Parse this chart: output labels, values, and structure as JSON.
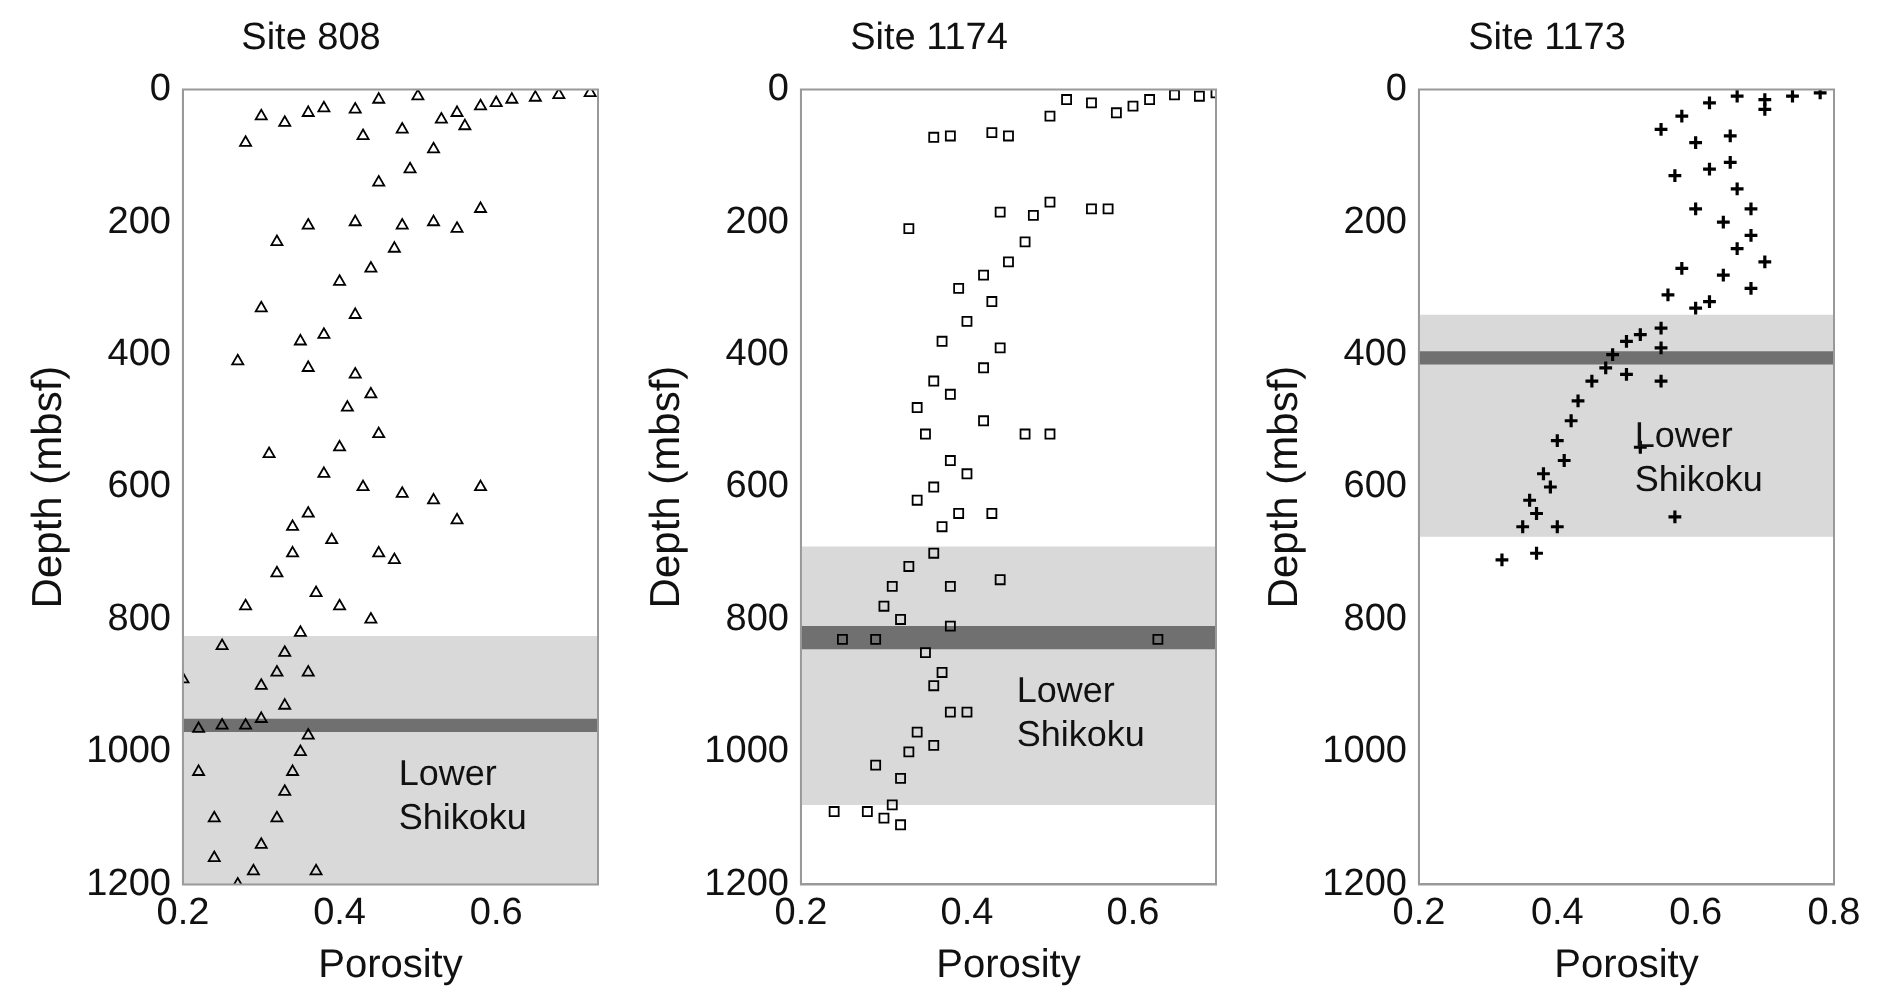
{
  "chart_data": [
    {
      "type": "scatter",
      "title": "Site 808",
      "xlabel": "Porosity",
      "ylabel": "Depth (mbsf)",
      "marker": "triangle",
      "xlim": [
        0.2,
        0.73
      ],
      "xticks": [
        0.2,
        0.4,
        0.6
      ],
      "ylim": [
        1200,
        0
      ],
      "yticks": [
        0,
        200,
        400,
        600,
        800,
        1000,
        1200
      ],
      "bands": [
        {
          "axis": "y",
          "from": 825,
          "to": 1200,
          "label": "Lower Shikoku",
          "color": "#d9d9d9"
        },
        {
          "axis": "y",
          "from": 950,
          "to": 970,
          "color": "#707070"
        }
      ],
      "series": [
        {
          "color": "#000000",
          "x": [
            0.72,
            0.68,
            0.65,
            0.62,
            0.6,
            0.58,
            0.55,
            0.53,
            0.5,
            0.45,
            0.42,
            0.38,
            0.36,
            0.33,
            0.3,
            0.28,
            0.43,
            0.48,
            0.56,
            0.52,
            0.49,
            0.45,
            0.58,
            0.52,
            0.48,
            0.55,
            0.42,
            0.36,
            0.32,
            0.47,
            0.44,
            0.4,
            0.3,
            0.42,
            0.38,
            0.35,
            0.27,
            0.36,
            0.42,
            0.44,
            0.41,
            0.45,
            0.4,
            0.31,
            0.38,
            0.43,
            0.48,
            0.52,
            0.36,
            0.34,
            0.39,
            0.45,
            0.47,
            0.34,
            0.32,
            0.37,
            0.4,
            0.44,
            0.35,
            0.33,
            0.32,
            0.3,
            0.36,
            0.2,
            0.33,
            0.3,
            0.25,
            0.22,
            0.28,
            0.36,
            0.35,
            0.34,
            0.33,
            0.32,
            0.3,
            0.29,
            0.27,
            0.24,
            0.22,
            0.24,
            0.37,
            0.58,
            0.55,
            0.28,
            0.25
          ],
          "values": [
            5,
            8,
            12,
            15,
            20,
            25,
            35,
            45,
            10,
            15,
            30,
            28,
            35,
            50,
            40,
            80,
            70,
            60,
            55,
            90,
            120,
            140,
            180,
            200,
            205,
            210,
            200,
            205,
            230,
            240,
            270,
            290,
            330,
            340,
            370,
            380,
            410,
            420,
            430,
            460,
            480,
            520,
            540,
            550,
            580,
            600,
            610,
            620,
            640,
            660,
            680,
            700,
            710,
            700,
            730,
            760,
            780,
            800,
            820,
            850,
            880,
            900,
            880,
            890,
            930,
            950,
            960,
            965,
            960,
            975,
            1000,
            1030,
            1060,
            1100,
            1140,
            1180,
            1200,
            1160,
            1030,
            1100,
            1180,
            600,
            650,
            780,
            840
          ]
        }
      ]
    },
    {
      "type": "scatter",
      "title": "Site 1174",
      "xlabel": "Porosity",
      "ylabel": "Depth (mbsf)",
      "marker": "square",
      "xlim": [
        0.2,
        0.7
      ],
      "xticks": [
        0.2,
        0.4,
        0.6
      ],
      "ylim": [
        1200,
        0
      ],
      "yticks": [
        0,
        200,
        400,
        600,
        800,
        1000,
        1200
      ],
      "bands": [
        {
          "axis": "y",
          "from": 690,
          "to": 1080,
          "label": "Lower Shikoku",
          "color": "#d9d9d9"
        },
        {
          "axis": "y",
          "from": 810,
          "to": 845,
          "color": "#707070"
        }
      ],
      "series": [
        {
          "color": "#000000",
          "x": [
            0.7,
            0.68,
            0.65,
            0.62,
            0.6,
            0.58,
            0.55,
            0.52,
            0.5,
            0.45,
            0.38,
            0.36,
            0.43,
            0.57,
            0.55,
            0.5,
            0.48,
            0.44,
            0.33,
            0.47,
            0.45,
            0.42,
            0.39,
            0.43,
            0.4,
            0.37,
            0.44,
            0.42,
            0.36,
            0.38,
            0.34,
            0.35,
            0.42,
            0.47,
            0.5,
            0.38,
            0.36,
            0.4,
            0.34,
            0.39,
            0.43,
            0.37,
            0.36,
            0.33,
            0.31,
            0.38,
            0.44,
            0.3,
            0.32,
            0.29,
            0.25,
            0.38,
            0.63,
            0.35,
            0.37,
            0.36,
            0.38,
            0.34,
            0.33,
            0.4,
            0.29,
            0.32,
            0.31,
            0.3,
            0.32,
            0.24,
            0.28,
            0.36
          ],
          "values": [
            5,
            10,
            8,
            15,
            25,
            35,
            20,
            15,
            40,
            70,
            70,
            72,
            65,
            180,
            180,
            170,
            190,
            185,
            210,
            230,
            260,
            280,
            300,
            320,
            350,
            380,
            390,
            420,
            440,
            460,
            480,
            520,
            500,
            520,
            520,
            560,
            600,
            580,
            620,
            640,
            640,
            660,
            700,
            720,
            750,
            750,
            740,
            780,
            800,
            830,
            830,
            810,
            830,
            850,
            880,
            900,
            940,
            970,
            1000,
            940,
            1020,
            1040,
            1080,
            1100,
            1110,
            1090,
            1090,
            990
          ]
        }
      ]
    },
    {
      "type": "scatter",
      "title": "Site 1173",
      "xlabel": "Porosity",
      "ylabel": "Depth (mbsf)",
      "marker": "cross",
      "xlim": [
        0.2,
        0.8
      ],
      "xticks": [
        0.2,
        0.4,
        0.6,
        0.8
      ],
      "ylim": [
        1200,
        0
      ],
      "yticks": [
        0,
        200,
        400,
        600,
        800,
        1000,
        1200
      ],
      "bands": [
        {
          "axis": "y",
          "from": 340,
          "to": 675,
          "label": "Lower Shikoku",
          "color": "#d9d9d9"
        },
        {
          "axis": "y",
          "from": 395,
          "to": 415,
          "color": "#707070"
        }
      ],
      "series": [
        {
          "color": "#000000",
          "x": [
            0.78,
            0.74,
            0.7,
            0.66,
            0.62,
            0.58,
            0.55,
            0.6,
            0.65,
            0.62,
            0.66,
            0.68,
            0.64,
            0.66,
            0.7,
            0.64,
            0.68,
            0.62,
            0.56,
            0.58,
            0.6,
            0.55,
            0.52,
            0.5,
            0.48,
            0.47,
            0.45,
            0.5,
            0.55,
            0.43,
            0.42,
            0.4,
            0.41,
            0.38,
            0.39,
            0.36,
            0.37,
            0.35,
            0.4,
            0.32,
            0.37,
            0.57,
            0.52,
            0.55,
            0.65,
            0.6,
            0.68,
            0.7,
            0.57
          ],
          "values": [
            5,
            10,
            15,
            10,
            20,
            40,
            60,
            80,
            70,
            120,
            150,
            180,
            200,
            240,
            260,
            280,
            300,
            320,
            310,
            270,
            330,
            360,
            370,
            380,
            400,
            420,
            440,
            430,
            440,
            470,
            500,
            530,
            560,
            580,
            600,
            620,
            640,
            660,
            660,
            710,
            700,
            645,
            540,
            390,
            110,
            180,
            220,
            30,
            130
          ]
        }
      ]
    }
  ]
}
